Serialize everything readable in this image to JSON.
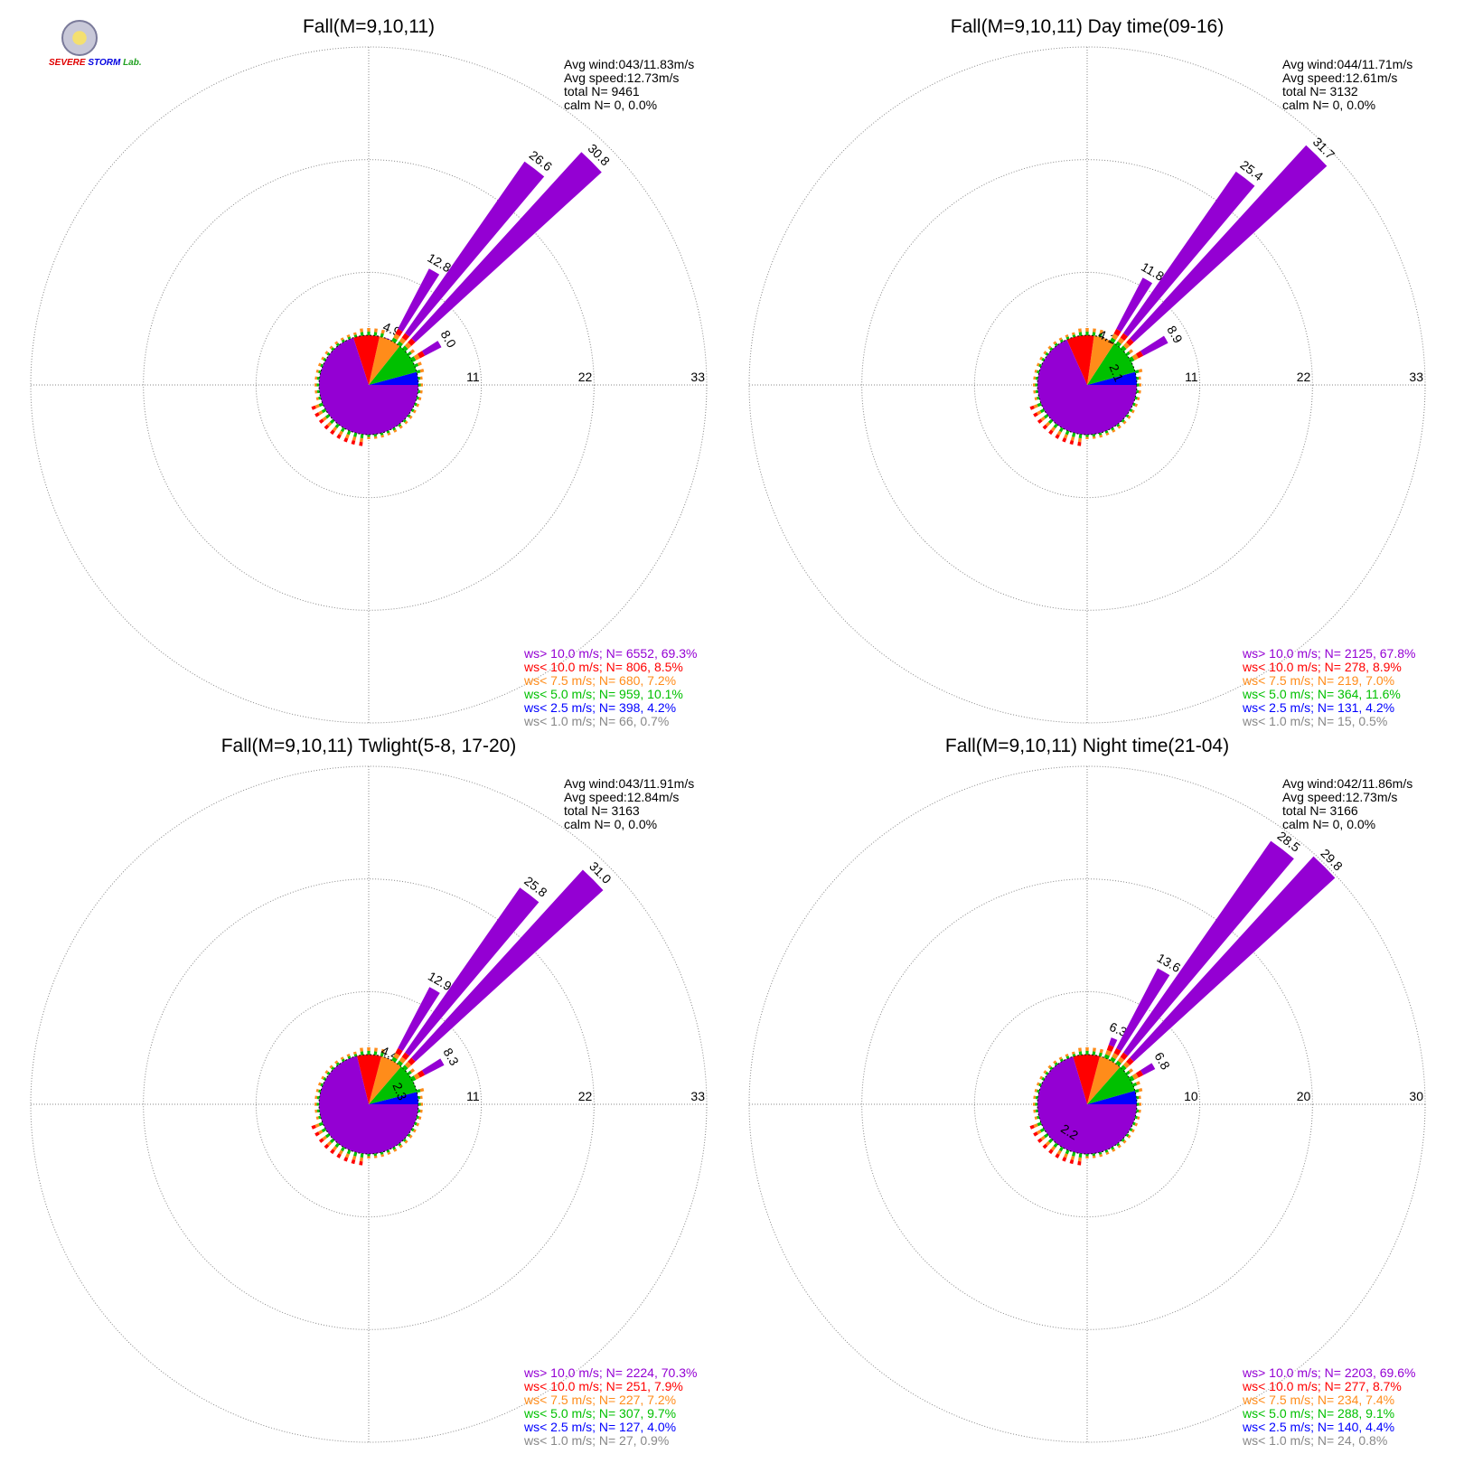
{
  "logo": {
    "line1": "SEVERE",
    "line2": "STORM",
    "line3": "Lab."
  },
  "colors": {
    "gt10": "#9400d3",
    "lt10": "#ff0000",
    "lt7_5": "#ff8c1a",
    "lt5": "#00c000",
    "lt2_5": "#0000ff",
    "lt1": "#888888",
    "grid": "#888888"
  },
  "chart_data": [
    {
      "type": "windrose",
      "title": "Fall(M=9,10,11)",
      "ring_labels": [
        "11",
        "22",
        "33"
      ],
      "rmax": 33,
      "stats": {
        "avg_wind": "Avg wind:043/11.83m/s",
        "avg_speed": "Avg speed:12.73m/s",
        "total": "total N=       9461",
        "calm": "calm N=      0,   0.0%"
      },
      "legend": [
        {
          "label": "ws> 10.0 m/s; N=  6552, 69.3%",
          "color": "#9400d3"
        },
        {
          "label": "ws< 10.0 m/s; N=   806,  8.5%",
          "color": "#ff0000"
        },
        {
          "label": "ws<  7.5 m/s; N=   680,  7.2%",
          "color": "#ff8c1a"
        },
        {
          "label": "ws<  5.0 m/s; N=   959, 10.1%",
          "color": "#00c000"
        },
        {
          "label": "ws<  2.5 m/s; N=   398,  4.2%",
          "color": "#0000ff"
        },
        {
          "label": "ws<  1.0 m/s; N=    66,  0.7%",
          "color": "#888888"
        }
      ],
      "labeled_petals": [
        {
          "dir": 22.5,
          "value": 4.9,
          "label": "4.9"
        },
        {
          "dir": 30,
          "value": 12.8,
          "label": "12.8"
        },
        {
          "dir": 37.5,
          "value": 26.6,
          "label": "26.6"
        },
        {
          "dir": 45,
          "value": 30.8,
          "label": "30.8"
        },
        {
          "dir": 60,
          "value": 8.0,
          "label": "8.0"
        }
      ]
    },
    {
      "type": "windrose",
      "title": "Fall(M=9,10,11) Day time(09-16)",
      "ring_labels": [
        "11",
        "22",
        "33"
      ],
      "rmax": 33,
      "stats": {
        "avg_wind": "Avg wind:044/11.71m/s",
        "avg_speed": "Avg speed:12.61m/s",
        "total": "total N=       3132",
        "calm": "calm N=      0,   0.0%"
      },
      "legend": [
        {
          "label": "ws> 10.0 m/s; N=  2125, 67.8%",
          "color": "#9400d3"
        },
        {
          "label": "ws< 10.0 m/s; N=   278,  8.9%",
          "color": "#ff0000"
        },
        {
          "label": "ws<  7.5 m/s; N=   219,  7.0%",
          "color": "#ff8c1a"
        },
        {
          "label": "ws<  5.0 m/s; N=   364, 11.6%",
          "color": "#00c000"
        },
        {
          "label": "ws<  2.5 m/s; N=   131,  4.2%",
          "color": "#0000ff"
        },
        {
          "label": "ws<  1.0 m/s; N=    15,  0.5%",
          "color": "#888888"
        }
      ],
      "labeled_petals": [
        {
          "dir": 22.5,
          "value": 4.1,
          "label": "4.1"
        },
        {
          "dir": 30,
          "value": 11.8,
          "label": "11.8"
        },
        {
          "dir": 37.5,
          "value": 25.4,
          "label": "25.4"
        },
        {
          "dir": 45,
          "value": 31.7,
          "label": "31.7"
        },
        {
          "dir": 60,
          "value": 8.9,
          "label": "8.9"
        },
        {
          "dir": 67.5,
          "value": 2.1,
          "label": "2.1"
        }
      ]
    },
    {
      "type": "windrose",
      "title": "Fall(M=9,10,11) Twlight(5-8, 17-20)",
      "ring_labels": [
        "11",
        "22",
        "33"
      ],
      "rmax": 33,
      "stats": {
        "avg_wind": "Avg wind:043/11.91m/s",
        "avg_speed": "Avg speed:12.84m/s",
        "total": "total N=       3163",
        "calm": "calm N=      0,   0.0%"
      },
      "legend": [
        {
          "label": "ws> 10.0 m/s; N=  2224, 70.3%",
          "color": "#9400d3"
        },
        {
          "label": "ws< 10.0 m/s; N=   251,  7.9%",
          "color": "#ff0000"
        },
        {
          "label": "ws<  7.5 m/s; N=   227,  7.2%",
          "color": "#ff8c1a"
        },
        {
          "label": "ws<  5.0 m/s; N=   307,  9.7%",
          "color": "#00c000"
        },
        {
          "label": "ws<  2.5 m/s; N=   127,  4.0%",
          "color": "#0000ff"
        },
        {
          "label": "ws<  1.0 m/s; N=    27,  0.9%",
          "color": "#888888"
        }
      ],
      "labeled_petals": [
        {
          "dir": 22.5,
          "value": 4.4,
          "label": "4.4"
        },
        {
          "dir": 30,
          "value": 12.9,
          "label": "12.9"
        },
        {
          "dir": 37.5,
          "value": 25.8,
          "label": "25.8"
        },
        {
          "dir": 45,
          "value": 31.0,
          "label": "31.0"
        },
        {
          "dir": 60,
          "value": 8.3,
          "label": "8.3"
        },
        {
          "dir": 67.5,
          "value": 2.3,
          "label": "2.3"
        }
      ]
    },
    {
      "type": "windrose",
      "title": "Fall(M=9,10,11) Night time(21-04)",
      "ring_labels": [
        "10",
        "20",
        "30"
      ],
      "rmax": 30,
      "stats": {
        "avg_wind": "Avg wind:042/11.86m/s",
        "avg_speed": "Avg speed:12.73m/s",
        "total": "total N=       3166",
        "calm": "calm N=      0,   0.0%"
      },
      "legend": [
        {
          "label": "ws> 10.0 m/s; N=  2203, 69.6%",
          "color": "#9400d3"
        },
        {
          "label": "ws< 10.0 m/s; N=   277,  8.7%",
          "color": "#ff0000"
        },
        {
          "label": "ws<  7.5 m/s; N=   234,  7.4%",
          "color": "#ff8c1a"
        },
        {
          "label": "ws<  5.0 m/s; N=   288,  9.1%",
          "color": "#00c000"
        },
        {
          "label": "ws<  2.5 m/s; N=   140,  4.4%",
          "color": "#0000ff"
        },
        {
          "label": "ws<  1.0 m/s; N=    24,  0.8%",
          "color": "#888888"
        }
      ],
      "labeled_petals": [
        {
          "dir": 22.5,
          "value": 6.3,
          "label": "6.3"
        },
        {
          "dir": 30,
          "value": 13.6,
          "label": "13.6"
        },
        {
          "dir": 37.5,
          "value": 28.5,
          "label": "28.5"
        },
        {
          "dir": 45,
          "value": 29.8,
          "label": "29.8"
        },
        {
          "dir": 60,
          "value": 6.8,
          "label": "6.8"
        },
        {
          "dir": 212.5,
          "value": 2.2,
          "label": "2.2"
        }
      ]
    }
  ]
}
